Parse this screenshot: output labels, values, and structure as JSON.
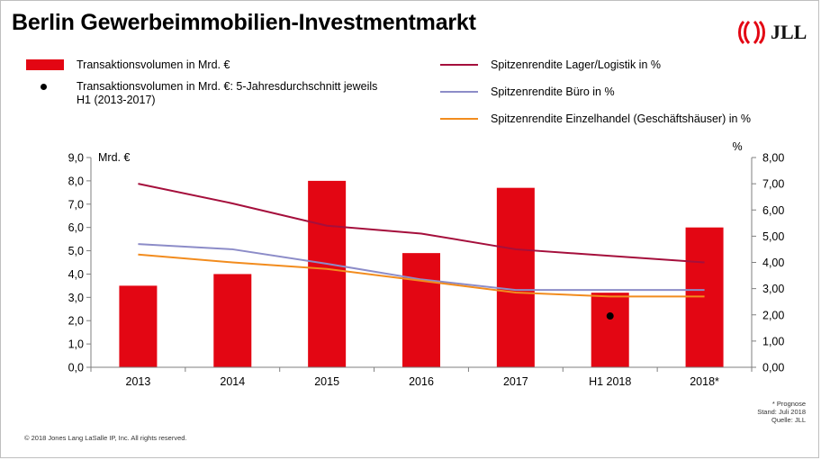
{
  "title": "Berlin Gewerbeimmobilien-Investmentmarkt",
  "logo": {
    "text": "JLL",
    "color": "#e30613"
  },
  "colors": {
    "bar": "#e30613",
    "logistik": "#a50f3c",
    "buero": "#8c8cc8",
    "einzelhandel": "#f28c1e"
  },
  "legend": {
    "bar_label": "Transaktionsvolumen in Mrd. €",
    "dot_label": "Transaktionsvolumen in Mrd. €: 5-Jahresdurchschnitt jeweils H1 (2013-2017)",
    "logistik_label": "Spitzenrendite Lager/Logistik in %",
    "buero_label": "Spitzenrendite Büro in %",
    "einzelhandel_label": "Spitzenrendite Einzelhandel (Geschäftshäuser) in %"
  },
  "chart_data": {
    "type": "bar",
    "categories": [
      "2013",
      "2014",
      "2015",
      "2016",
      "2017",
      "H1 2018",
      "2018*"
    ],
    "y_left": {
      "unit_label": "Mrd. €",
      "ylim": [
        0,
        9
      ],
      "ticks": [
        "0,0",
        "1,0",
        "2,0",
        "3,0",
        "4,0",
        "5,0",
        "6,0",
        "7,0",
        "8,0",
        "9,0"
      ]
    },
    "y_right": {
      "unit_label": "%",
      "ylim": [
        0,
        8
      ],
      "ticks": [
        "0,00",
        "1,00",
        "2,00",
        "3,00",
        "4,00",
        "5,00",
        "6,00",
        "7,00",
        "8,00"
      ]
    },
    "series": [
      {
        "name": "Transaktionsvolumen in Mrd. €",
        "kind": "bar",
        "axis": "left",
        "values": [
          3.5,
          4.0,
          8.0,
          4.9,
          7.7,
          3.2,
          6.0
        ]
      },
      {
        "name": "Spitzenrendite Lager/Logistik in %",
        "kind": "line",
        "axis": "right",
        "values": [
          7.0,
          6.25,
          5.4,
          5.1,
          4.5,
          4.25,
          4.0
        ]
      },
      {
        "name": "Spitzenrendite Büro in %",
        "kind": "line",
        "axis": "right",
        "values": [
          4.7,
          4.5,
          3.95,
          3.35,
          2.95,
          2.95,
          2.95
        ]
      },
      {
        "name": "Spitzenrendite Einzelhandel (Geschäftshäuser) in %",
        "kind": "line",
        "axis": "right",
        "values": [
          4.3,
          4.0,
          3.75,
          3.3,
          2.85,
          2.7,
          2.7
        ]
      }
    ],
    "average_marker": {
      "axis": "left",
      "category": "H1 2018",
      "value": 2.2
    },
    "grid": false
  },
  "footnote": [
    "* Prognose",
    "Stand: Juli 2018",
    "Quelle: JLL"
  ],
  "copyright": "© 2018 Jones Lang LaSalle IP, Inc. All rights reserved."
}
